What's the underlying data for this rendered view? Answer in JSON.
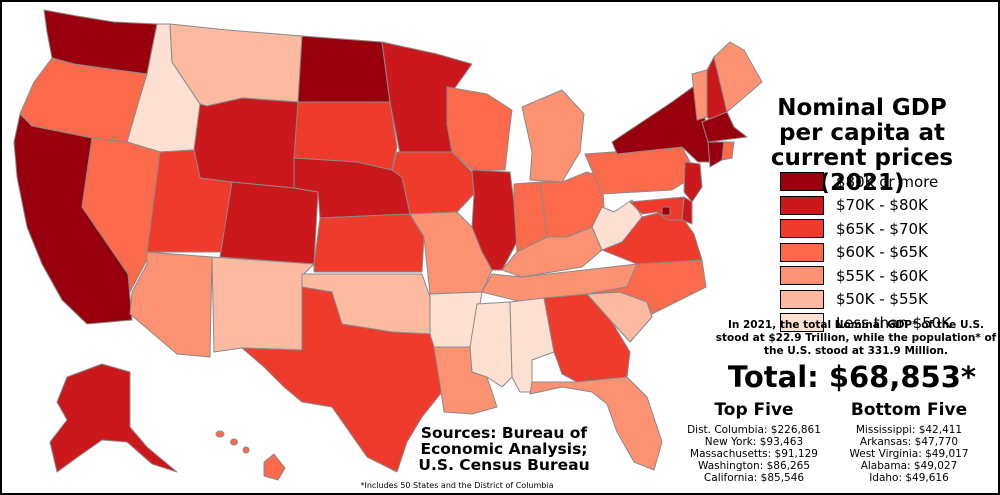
{
  "title": "Nominal GDP per capita at current prices (2021)",
  "legend": [
    {
      "label": "$80K or more",
      "color": "#99000d"
    },
    {
      "label": "$70K - $80K",
      "color": "#cb181d"
    },
    {
      "label": "$65K - $70K",
      "color": "#ef3b2c"
    },
    {
      "label": "$60K - $65K",
      "color": "#fb6a4a"
    },
    {
      "label": "$55K - $60K",
      "color": "#fc9272"
    },
    {
      "label": "$50K - $55K",
      "color": "#fcbba1"
    },
    {
      "label": "Less than $50K",
      "color": "#fee0d2"
    }
  ],
  "note": "In 2021, the total Nominal GDP* of the U.S. stood at $22.9 Trillion, while the population* of the U.S. stood at 331.9 Million.",
  "total": "Total: $68,853*",
  "top_five": {
    "heading": "Top Five",
    "items": [
      "Dist. Columbia: $226,861",
      "New York: $93,463",
      "Massachusetts: $91,129",
      "Washington: $86,265",
      "California: $85,546"
    ]
  },
  "bottom_five": {
    "heading": "Bottom Five",
    "items": [
      "Mississippi: $42,411",
      "Arkansas: $47,770",
      "West Virginia: $49,017",
      "Alabama: $49,027",
      "Idaho: $49,616"
    ]
  },
  "sources": "Sources: Bureau of Economic Analysis; U.S. Census Bureau",
  "footnote": "*Includes 50 States and the District of Columbia",
  "states": {
    "WA": "$80K or more",
    "OR": "$60K - $65K",
    "CA": "$80K or more",
    "ID": "Less than $50K",
    "NV": "$60K - $65K",
    "MT": "$50K - $55K",
    "WY": "$70K - $80K",
    "UT": "$65K - $70K",
    "AZ": "$55K - $60K",
    "CO": "$70K - $80K",
    "NM": "$50K - $55K",
    "ND": "$80K or more",
    "SD": "$65K - $70K",
    "NE": "$70K - $80K",
    "KS": "$65K - $70K",
    "OK": "$50K - $55K",
    "TX": "$65K - $70K",
    "MN": "$70K - $80K",
    "IA": "$65K - $70K",
    "MO": "$55K - $60K",
    "AR": "Less than $50K",
    "LA": "$55K - $60K",
    "WI": "$60K - $65K",
    "IL": "$70K - $80K",
    "MI": "$55K - $60K",
    "IN": "$60K - $65K",
    "OH": "$60K - $65K",
    "KY": "$55K - $60K",
    "TN": "$55K - $60K",
    "MS": "Less than $50K",
    "AL": "Less than $50K",
    "GA": "$65K - $70K",
    "FL": "$55K - $60K",
    "SC": "$50K - $55K",
    "NC": "$60K - $65K",
    "VA": "$65K - $70K",
    "WV": "Less than $50K",
    "PA": "$60K - $65K",
    "NY": "$80K or more",
    "VT": "$55K - $60K",
    "NH": "$70K - $80K",
    "ME": "$55K - $60K",
    "MA": "$80K or more",
    "CT": "$80K or more",
    "RI": "$60K - $65K",
    "NJ": "$70K - $80K",
    "DE": "$70K - $80K",
    "MD": "$65K - $70K",
    "DC": "$80K or more",
    "AK": "$70K - $80K",
    "HI": "$60K - $65K"
  }
}
